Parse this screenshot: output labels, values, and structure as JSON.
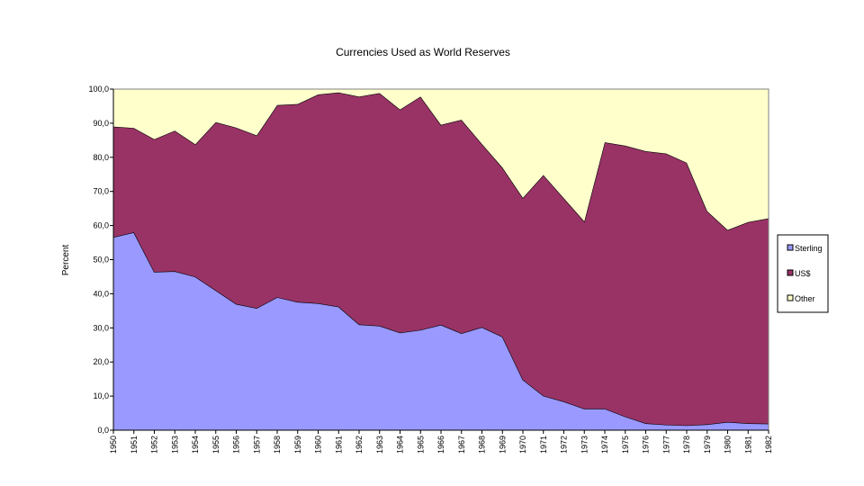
{
  "chart_data": {
    "type": "area",
    "title": "Currencies Used as World Reserves",
    "xlabel": "",
    "ylabel": "Percent",
    "ylim": [
      0,
      100
    ],
    "y_ticks": [
      "0,0",
      "10,0",
      "20,0",
      "30,0",
      "40,0",
      "50,0",
      "60,0",
      "70,0",
      "80,0",
      "90,0",
      "100,0"
    ],
    "x": [
      "1950",
      "1951",
      "1952",
      "1953",
      "1954",
      "1955",
      "1956",
      "1957",
      "1958",
      "1959",
      "1960",
      "1961",
      "1962",
      "1963",
      "1964",
      "1965",
      "1966",
      "1967",
      "1968",
      "1969",
      "1970",
      "1971",
      "1972",
      "1973",
      "1974",
      "1975",
      "1976",
      "1977",
      "1978",
      "1979",
      "1980",
      "1981",
      "1982"
    ],
    "stacked": true,
    "series": [
      {
        "name": "Sterling",
        "color": "#9999ff",
        "values": [
          56.6,
          58.0,
          46.4,
          46.6,
          45.0,
          41.0,
          37.0,
          35.8,
          39.0,
          37.6,
          37.2,
          36.2,
          31.0,
          30.6,
          28.6,
          29.4,
          30.9,
          28.4,
          30.2,
          27.4,
          14.8,
          10.1,
          8.4,
          6.3,
          6.3,
          4.0,
          2.0,
          1.6,
          1.4,
          1.7,
          2.4,
          2.0,
          1.9
        ]
      },
      {
        "name": "US$",
        "color": "#993366",
        "values": [
          32.4,
          30.6,
          38.9,
          41.2,
          38.8,
          49.3,
          51.7,
          50.6,
          56.3,
          58.0,
          61.2,
          62.8,
          66.8,
          68.2,
          65.4,
          68.4,
          58.6,
          62.6,
          53.7,
          49.6,
          53.3,
          64.7,
          59.6,
          54.9,
          78.1,
          79.4,
          79.8,
          79.5,
          77.0,
          62.5,
          56.3,
          59.0,
          60.2
        ]
      },
      {
        "name": "Other",
        "color": "#ffffcc",
        "values": [
          11.0,
          11.4,
          14.7,
          12.2,
          16.2,
          9.7,
          11.3,
          13.6,
          4.7,
          4.4,
          1.6,
          1.0,
          2.2,
          1.2,
          6.0,
          2.2,
          10.5,
          9.0,
          16.1,
          23.0,
          31.9,
          25.2,
          32.0,
          38.8,
          15.6,
          16.6,
          18.2,
          18.9,
          21.6,
          35.8,
          41.3,
          39.0,
          37.9
        ]
      }
    ],
    "legend_position": "right",
    "grid": false
  }
}
